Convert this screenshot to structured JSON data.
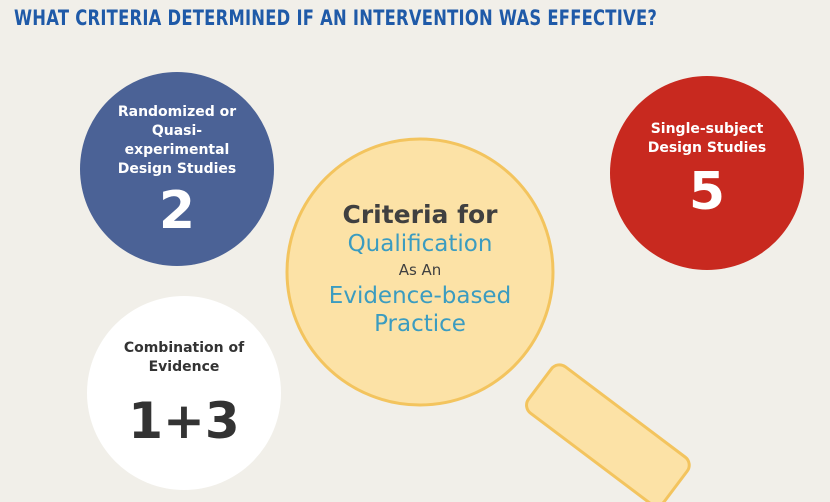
{
  "title": "WHAT CRITERIA DETERMINED IF AN INTERVENTION WAS EFFECTIVE?",
  "circles": {
    "blue": {
      "label": "Randomized or Quasi-experimental Design Studies",
      "value": "2"
    },
    "red": {
      "label": "Single-subject Design Studies",
      "value": "5"
    },
    "white": {
      "label": "Combination of Evidence",
      "value": "1+3"
    }
  },
  "center": {
    "line1": "Criteria for",
    "line2": "Qualification",
    "line3": "As An",
    "line4": "Evidence-based",
    "line5": "Practice"
  },
  "colors": {
    "background": "#f1efe9",
    "title": "#1f5aa8",
    "blue_circle": "#4b6296",
    "red_circle": "#c8291f",
    "white_circle": "#ffffff",
    "magnifier": "#fce2a6",
    "magnifier_border": "#f3c45e",
    "accent_text": "#3b9cc0"
  }
}
